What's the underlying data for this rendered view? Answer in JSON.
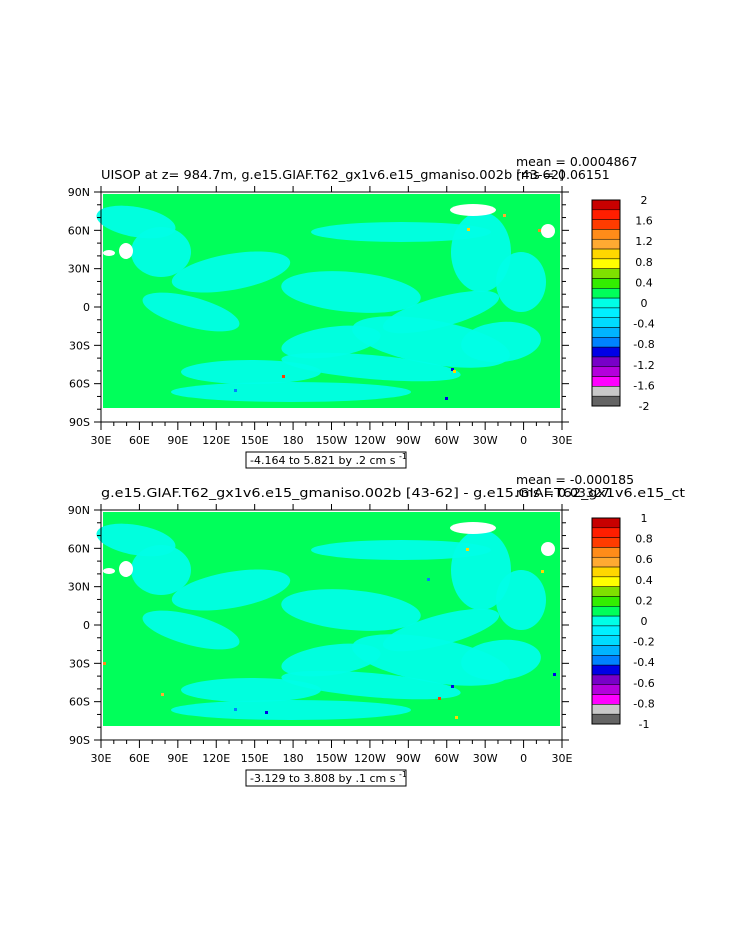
{
  "chart_data": [
    {
      "type": "heatmap",
      "title": "UISOP at z= 984.7m, g.e15.GIAF.T62_gx1v6.e15_gmaniso.002b [43-62]",
      "stats": {
        "mean": "mean = 0.0004867",
        "rms": "rms = 0.06151"
      },
      "x_ticks": [
        "30E",
        "60E",
        "90E",
        "120E",
        "150E",
        "180",
        "150W",
        "120W",
        "90W",
        "60W",
        "30W",
        "0",
        "30E"
      ],
      "y_ticks": [
        "90N",
        "60N",
        "30N",
        "0",
        "30S",
        "60S",
        "90S"
      ],
      "xlim": [
        "30E",
        "30E"
      ],
      "ylim": [
        "90S",
        "90N"
      ],
      "range_label": "-4.164 to 5.821 by .2 cm s",
      "range_unit_sup": "-1",
      "colorbar_labels": [
        "2",
        "1.6",
        "1.2",
        "0.8",
        "0.4",
        "0",
        "-0.4",
        "-0.8",
        "-1.2",
        "-1.6",
        "-2"
      ],
      "colorbar_colors": [
        "#c80000",
        "#ff1e00",
        "#ff3c00",
        "#ff8c19",
        "#ffaa32",
        "#ffd700",
        "#ffff00",
        "#7fe000",
        "#33ee00",
        "#00ff5a",
        "#00ffe6",
        "#00f0ff",
        "#00dcff",
        "#00b4ff",
        "#0082ff",
        "#0000e6",
        "#7800c8",
        "#b400dc",
        "#ff00ff",
        "#c8c8c8",
        "#646464"
      ],
      "dominant_colors": {
        "zero": "#00ff5a",
        "slightly_negative": "#00ffe6"
      },
      "grid": false,
      "legend": "right"
    },
    {
      "type": "heatmap",
      "title": "g.e15.GIAF.T62_gx1v6.e15_gmaniso.002b [43-62] - g.e15.GIAF.T62_gx1v6.e15_ct",
      "stats": {
        "mean": "mean = -0.000185",
        "rms": "rms = 0.03327"
      },
      "x_ticks": [
        "30E",
        "60E",
        "90E",
        "120E",
        "150E",
        "180",
        "150W",
        "120W",
        "90W",
        "60W",
        "30W",
        "0",
        "30E"
      ],
      "y_ticks": [
        "90N",
        "60N",
        "30N",
        "0",
        "30S",
        "60S",
        "90S"
      ],
      "xlim": [
        "30E",
        "30E"
      ],
      "ylim": [
        "90S",
        "90N"
      ],
      "range_label": "-3.129 to 3.808 by .1 cm s",
      "range_unit_sup": "-1",
      "colorbar_labels": [
        "1",
        "0.8",
        "0.6",
        "0.4",
        "0.2",
        "0",
        "-0.2",
        "-0.4",
        "-0.6",
        "-0.8",
        "-1"
      ],
      "colorbar_colors": [
        "#c80000",
        "#ff1e00",
        "#ff3c00",
        "#ff8c19",
        "#ffaa32",
        "#ffd700",
        "#ffff00",
        "#7fe000",
        "#33ee00",
        "#00ff5a",
        "#00ffe6",
        "#00f0ff",
        "#00dcff",
        "#00b4ff",
        "#0082ff",
        "#0000e6",
        "#7800c8",
        "#b400dc",
        "#ff00ff",
        "#c8c8c8",
        "#646464"
      ],
      "dominant_colors": {
        "zero": "#00ff5a",
        "slightly_negative": "#00ffe6"
      },
      "grid": false,
      "legend": "right"
    }
  ]
}
